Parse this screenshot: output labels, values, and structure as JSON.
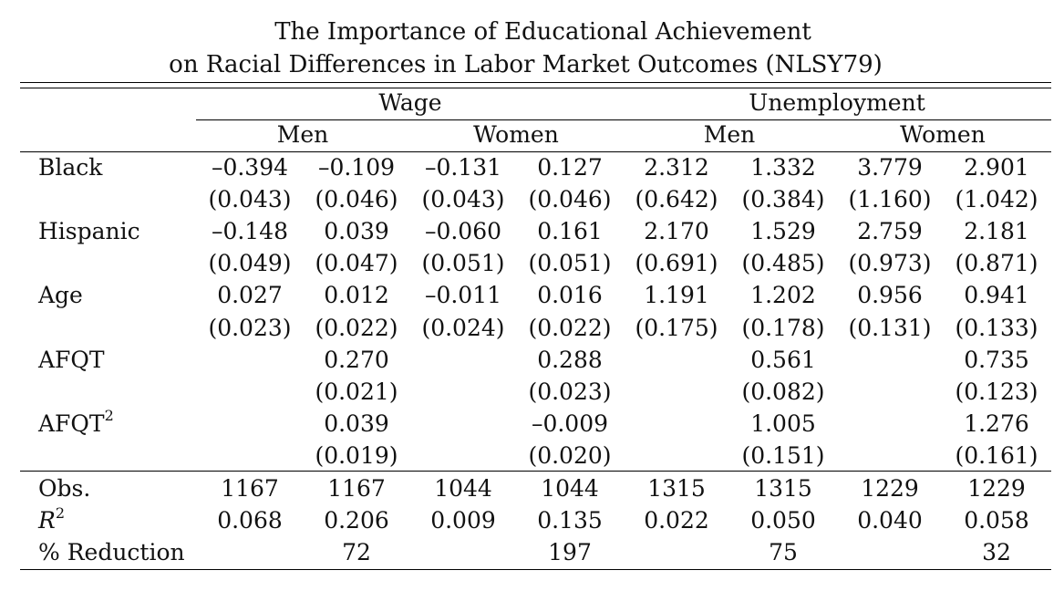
{
  "title": {
    "line1": "The Importance of Educational Achievement",
    "line2": "on Racial Differences in Labor Market Outcomes (NLSY79)"
  },
  "header": {
    "groups": [
      "Wage",
      "Unemployment"
    ],
    "subgroups": [
      "Men",
      "Women",
      "Men",
      "Women"
    ]
  },
  "rows": [
    {
      "label": "Black",
      "sup": "",
      "values": [
        "–0.394",
        "–0.109",
        "–0.131",
        "0.127",
        "2.312",
        "1.332",
        "3.779",
        "2.901"
      ]
    },
    {
      "label": "",
      "sup": "",
      "values": [
        "(0.043)",
        "(0.046)",
        "(0.043)",
        "(0.046)",
        "(0.642)",
        "(0.384)",
        "(1.160)",
        "(1.042)"
      ]
    },
    {
      "label": "Hispanic",
      "sup": "",
      "values": [
        "–0.148",
        "0.039",
        "–0.060",
        "0.161",
        "2.170",
        "1.529",
        "2.759",
        "2.181"
      ]
    },
    {
      "label": "",
      "sup": "",
      "values": [
        "(0.049)",
        "(0.047)",
        "(0.051)",
        "(0.051)",
        "(0.691)",
        "(0.485)",
        "(0.973)",
        "(0.871)"
      ]
    },
    {
      "label": "Age",
      "sup": "",
      "values": [
        "0.027",
        "0.012",
        "–0.011",
        "0.016",
        "1.191",
        "1.202",
        "0.956",
        "0.941"
      ]
    },
    {
      "label": "",
      "sup": "",
      "values": [
        "(0.023)",
        "(0.022)",
        "(0.024)",
        "(0.022)",
        "(0.175)",
        "(0.178)",
        "(0.131)",
        "(0.133)"
      ]
    },
    {
      "label": "AFQT",
      "sup": "",
      "values": [
        "",
        "0.270",
        "",
        "0.288",
        "",
        "0.561",
        "",
        "0.735"
      ]
    },
    {
      "label": "",
      "sup": "",
      "values": [
        "",
        "(0.021)",
        "",
        "(0.023)",
        "",
        "(0.082)",
        "",
        "(0.123)"
      ]
    },
    {
      "label": "AFQT",
      "sup": "2",
      "values": [
        "",
        "0.039",
        "",
        "–0.009",
        "",
        "1.005",
        "",
        "1.276"
      ]
    },
    {
      "label": "",
      "sup": "",
      "values": [
        "",
        "(0.019)",
        "",
        "(0.020)",
        "",
        "(0.151)",
        "",
        "(0.161)"
      ]
    }
  ],
  "stats": [
    {
      "label": "Obs.",
      "sup": "",
      "italic": false,
      "values": [
        "1167",
        "1167",
        "1044",
        "1044",
        "1315",
        "1315",
        "1229",
        "1229"
      ]
    },
    {
      "label": "R",
      "sup": "2",
      "italic": true,
      "values": [
        "0.068",
        "0.206",
        "0.009",
        "0.135",
        "0.022",
        "0.050",
        "0.040",
        "0.058"
      ]
    },
    {
      "label": "% Reduction",
      "sup": "",
      "italic": false,
      "values": [
        "",
        "72",
        "",
        "197",
        "",
        "75",
        "",
        "32"
      ]
    }
  ]
}
